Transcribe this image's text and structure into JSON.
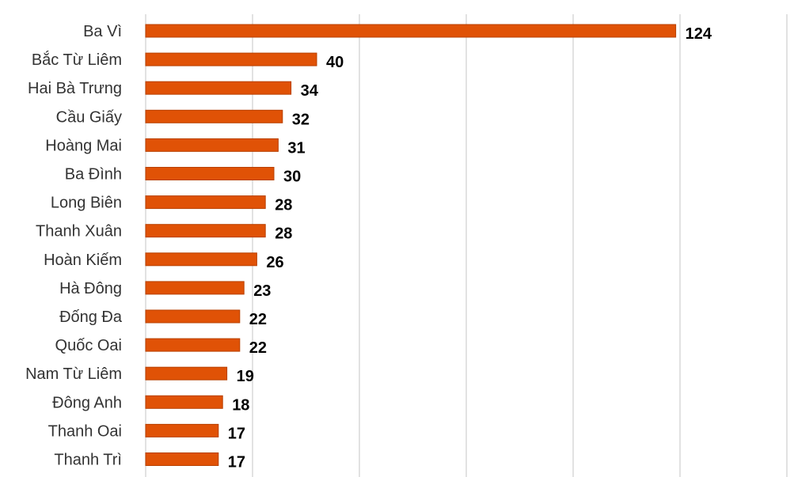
{
  "colors": {
    "bar": "#e05206",
    "bar_stroke": "#b84000",
    "grid": "#d9d9d9"
  },
  "chart_data": {
    "type": "bar",
    "orientation": "horizontal",
    "categories": [
      "Ba Vì",
      "Bắc Từ Liêm",
      "Hai Bà Trưng",
      "Cầu Giấy",
      "Hoàng Mai",
      "Ba Đình",
      "Long Biên",
      "Thanh Xuân",
      "Hoàn Kiếm",
      "Hà Đông",
      "Đống Đa",
      "Quốc Oai",
      "Nam Từ Liêm",
      "Đông Anh",
      "Thanh Oai",
      "Thanh Trì"
    ],
    "values": [
      124,
      40,
      34,
      32,
      31,
      30,
      28,
      28,
      26,
      23,
      22,
      22,
      19,
      18,
      17,
      17
    ],
    "value_labels": [
      "124",
      "40",
      "34",
      "32",
      "31",
      "30",
      "28",
      "28",
      "26",
      "23",
      "22",
      "22",
      "19",
      "18",
      "17",
      "17"
    ],
    "xlim": [
      0,
      150
    ],
    "grid_step": 25,
    "grid": true,
    "legend": "none"
  }
}
